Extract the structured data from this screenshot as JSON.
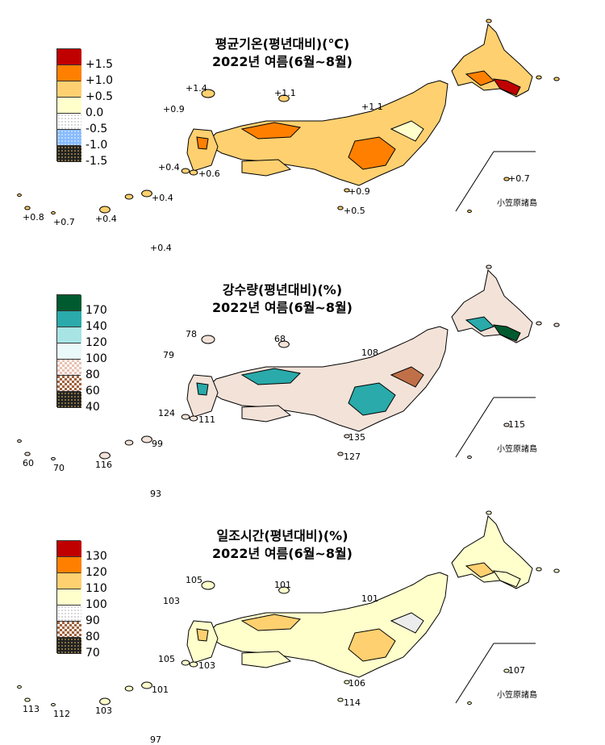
{
  "panels": [
    {
      "title_line1": "평균기온(평년대비)(℃)",
      "title_line2": "2022년 여름(6월~8월)",
      "legend": [
        {
          "label": "+1.5",
          "color": "#c00000",
          "pattern": "solid"
        },
        {
          "label": "+1.0",
          "color": "#ff8000",
          "pattern": "solid"
        },
        {
          "label": "+0.5",
          "color": "#ffd070",
          "pattern": "solid"
        },
        {
          "label": "0.0",
          "color": "#ffffcc",
          "pattern": "solid"
        },
        {
          "label": "-0.5",
          "color": "#eef6ff",
          "pattern": "dots-light"
        },
        {
          "label": "-1.0",
          "color": "#88bbff",
          "pattern": "dots"
        },
        {
          "label": "-1.5",
          "color": "#0000cc",
          "pattern": "dots-dark"
        }
      ],
      "map_colors": {
        "base": "#ffd070",
        "high": "#ff8000",
        "low": "#ffffcc",
        "top": "#c00000"
      },
      "annotations": [
        "+1.4",
        "+1.1",
        "+0.9",
        "+1.1",
        "+0.4",
        "+0.6",
        "+0.7",
        "+0.9",
        "+0.4",
        "+0.8",
        "+0.7",
        "+0.4",
        "+0.5",
        "+0.4"
      ],
      "bonin_label": "小笠原諸島"
    },
    {
      "title_line1": "강수량(평년대비)(%)",
      "title_line2": "2022년 여름(6월~8월)",
      "legend": [
        {
          "label": "170",
          "color": "#005a30",
          "pattern": "solid"
        },
        {
          "label": "140",
          "color": "#2aaaaa",
          "pattern": "solid"
        },
        {
          "label": "120",
          "color": "#a8e4e4",
          "pattern": "solid"
        },
        {
          "label": "100",
          "color": "#eaf9f9",
          "pattern": "solid"
        },
        {
          "label": "80",
          "color": "#f0d8cc",
          "pattern": "checker-light"
        },
        {
          "label": "60",
          "color": "#c07048",
          "pattern": "checker"
        },
        {
          "label": "40",
          "color": "#6a3a0a",
          "pattern": "dots-dark"
        }
      ],
      "map_colors": {
        "base": "#f2e2d8",
        "high": "#2aaaaa",
        "low": "#c07048",
        "top": "#005a30"
      },
      "annotations": [
        "78",
        "68",
        "79",
        "108",
        "124",
        "111",
        "115",
        "135",
        "99",
        "60",
        "70",
        "116",
        "127",
        "93"
      ],
      "bonin_label": "小笠原諸島"
    },
    {
      "title_line1": "일조시간(평년대비)(%)",
      "title_line2": "2022년 여름(6월~8월)",
      "legend": [
        {
          "label": "130",
          "color": "#c00000",
          "pattern": "solid"
        },
        {
          "label": "120",
          "color": "#ff8000",
          "pattern": "solid"
        },
        {
          "label": "110",
          "color": "#ffd070",
          "pattern": "solid"
        },
        {
          "label": "100",
          "color": "#ffffcc",
          "pattern": "solid"
        },
        {
          "label": "90",
          "color": "#f4f4f4",
          "pattern": "dots-light"
        },
        {
          "label": "80",
          "color": "#9a9a9a",
          "pattern": "checker"
        },
        {
          "label": "70",
          "color": "#2a2a2a",
          "pattern": "dots-dark"
        }
      ],
      "map_colors": {
        "base": "#ffffcc",
        "high": "#ffd070",
        "low": "#ececec",
        "top": "#ffffcc"
      },
      "annotations": [
        "105",
        "101",
        "103",
        "101",
        "105",
        "103",
        "107",
        "106",
        "101",
        "113",
        "112",
        "103",
        "114",
        "97"
      ],
      "bonin_label": "小笠原諸島"
    }
  ]
}
